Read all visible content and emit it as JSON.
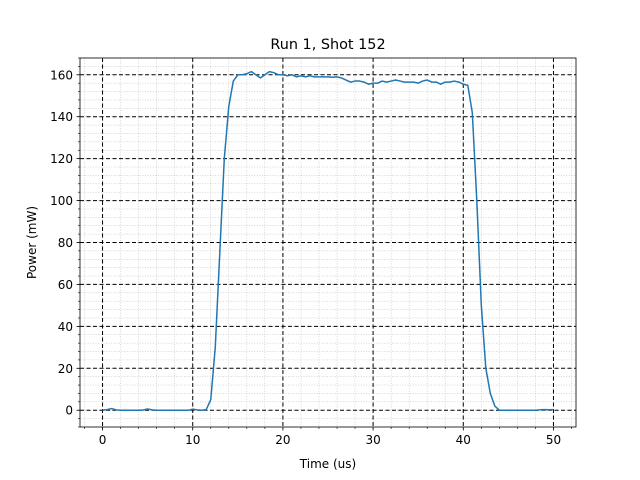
{
  "chart_data": {
    "type": "line",
    "title": "Run 1, Shot 152",
    "xlabel": "Time (us)",
    "ylabel": "Power (mW)",
    "xlim": [
      -2.5,
      52.5
    ],
    "ylim": [
      -8,
      168
    ],
    "xticks": [
      0,
      10,
      20,
      30,
      40,
      50
    ],
    "yticks": [
      0,
      20,
      40,
      60,
      80,
      100,
      120,
      140,
      160
    ],
    "x_minor_step": 2,
    "y_minor_step": 4,
    "grid": {
      "major": "black dashed",
      "minor": "gray dotted"
    },
    "series": [
      {
        "color": "#1f77b4",
        "x": [
          0,
          0.5,
          1,
          1.5,
          2,
          2.5,
          3,
          3.5,
          4,
          4.5,
          5,
          5.5,
          6,
          6.5,
          7,
          7.5,
          8,
          8.5,
          9,
          9.5,
          10,
          10.5,
          11,
          11.5,
          12,
          12.5,
          13,
          13.5,
          14,
          14.5,
          15,
          15.5,
          16,
          16.5,
          17,
          17.5,
          18,
          18.5,
          19,
          19.5,
          20,
          20.5,
          21,
          21.5,
          22,
          22.5,
          23,
          23.5,
          24,
          24.5,
          25,
          25.5,
          26,
          26.5,
          27,
          27.5,
          28,
          28.5,
          29,
          29.5,
          30,
          30.5,
          31,
          31.5,
          32,
          32.5,
          33,
          33.5,
          34,
          34.5,
          35,
          35.5,
          36,
          36.5,
          37,
          37.5,
          38,
          38.5,
          39,
          39.5,
          40,
          40.5,
          41,
          41.5,
          42,
          42.5,
          43,
          43.5,
          44,
          44.5,
          45,
          45.5,
          46,
          46.5,
          47,
          47.5,
          48,
          48.5,
          49,
          49.5,
          50
        ],
        "y": [
          0,
          0.3,
          0.8,
          0.2,
          0,
          0,
          0,
          0,
          0,
          0.1,
          0.6,
          0.2,
          0,
          0,
          0,
          0,
          0,
          0,
          0,
          0,
          0.5,
          0.2,
          0,
          0.3,
          5,
          30,
          75,
          120,
          145,
          157,
          160,
          160,
          160.5,
          161.5,
          160,
          158.5,
          160,
          161.5,
          161,
          160,
          160,
          159.5,
          160,
          159,
          159.5,
          159,
          159.5,
          159,
          159,
          159,
          159,
          158.8,
          159,
          158.5,
          157.5,
          156.5,
          157,
          157,
          156.5,
          155.5,
          156,
          156,
          157,
          156.5,
          157,
          157.5,
          157,
          156.5,
          156.5,
          156.5,
          156,
          157,
          157.5,
          156.5,
          156.5,
          155.5,
          156.5,
          156.5,
          157,
          156.5,
          155.5,
          155,
          142,
          100,
          50,
          20,
          8,
          2,
          0,
          0,
          0,
          0,
          0,
          0,
          0,
          0,
          0,
          0.2,
          0.3,
          0.2,
          0.3
        ]
      }
    ]
  }
}
